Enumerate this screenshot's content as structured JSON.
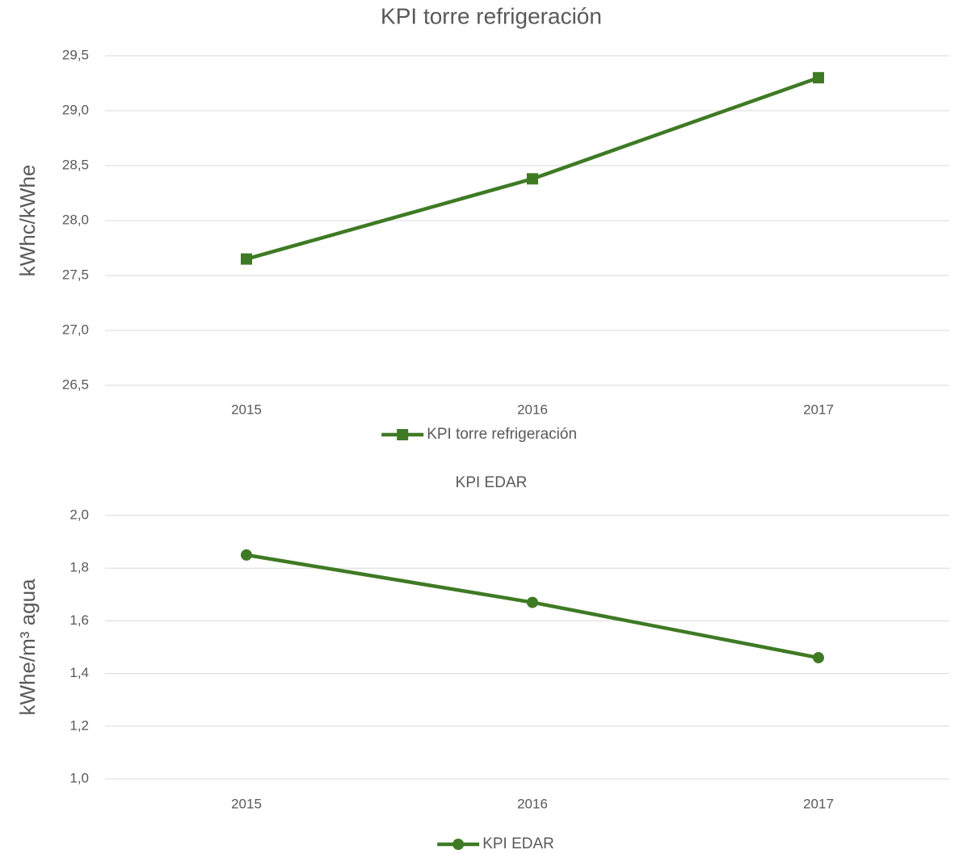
{
  "chart_data": [
    {
      "type": "line",
      "title": "KPI torre refrigeración",
      "y_label": "kWhc/kWhe",
      "categories": [
        "2015",
        "2016",
        "2017"
      ],
      "series": [
        {
          "name": "KPI torre refrigeración",
          "color": "#3e7a24",
          "marker": "square",
          "values": [
            27.65,
            28.38,
            29.3
          ]
        }
      ],
      "ylim": [
        26.5,
        29.5
      ],
      "yticks": [
        {
          "value": 26.5,
          "label": "26,5"
        },
        {
          "value": 27,
          "label": "27,0"
        },
        {
          "value": 27.5,
          "label": "27,5"
        },
        {
          "value": 28,
          "label": "28,0"
        },
        {
          "value": 28.5,
          "label": "28,5"
        },
        {
          "value": 29,
          "label": "29,0"
        },
        {
          "value": 29.5,
          "label": "29,5"
        }
      ],
      "grid": true,
      "legend": "bottom"
    },
    {
      "type": "line",
      "title": "KPI EDAR",
      "y_label": "kWhe/m³ agua",
      "categories": [
        "2015",
        "2016",
        "2017"
      ],
      "series": [
        {
          "name": "KPI EDAR",
          "color": "#3e7a24",
          "marker": "circle",
          "values": [
            1.85,
            1.67,
            1.46
          ]
        }
      ],
      "ylim": [
        1.0,
        2.0
      ],
      "yticks": [
        {
          "value": 1,
          "label": "1,0"
        },
        {
          "value": 1.2,
          "label": "1,2"
        },
        {
          "value": 1.4,
          "label": "1,4"
        },
        {
          "value": 1.6,
          "label": "1,6"
        },
        {
          "value": 1.8,
          "label": "1,8"
        },
        {
          "value": 2,
          "label": "2,0"
        }
      ],
      "grid": true,
      "legend": "bottom"
    }
  ]
}
